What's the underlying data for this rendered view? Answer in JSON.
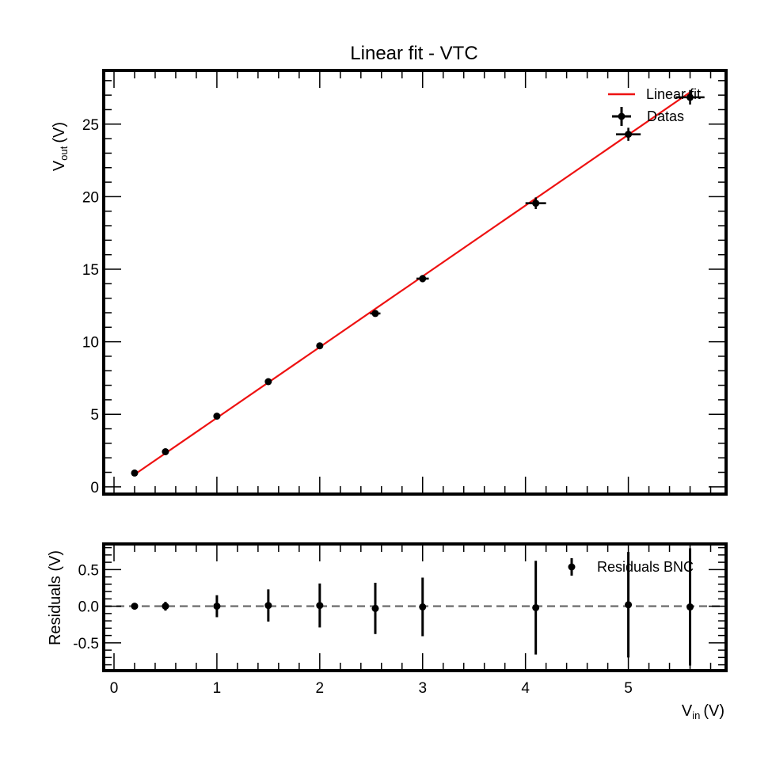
{
  "chart_data": [
    {
      "type": "scatter",
      "title": "Linear fit - VTC",
      "ylabel_main": "V",
      "ylabel_sub": "out",
      "ylabel_unit": "(V)",
      "xlim": [
        -0.1,
        5.95
      ],
      "ylim": [
        -0.5,
        28.7
      ],
      "yticks": [
        0,
        5,
        10,
        15,
        20,
        25
      ],
      "ytick_labels": [
        "0",
        "5",
        "10",
        "15",
        "20",
        "25"
      ],
      "legend": {
        "placement": "top-right",
        "entries": [
          "Linear fit",
          "Datas"
        ]
      },
      "fit": {
        "name": "Linear fit",
        "color": "#ee1111",
        "x": [
          0.2,
          5.6
        ],
        "y": [
          0.85,
          27.2
        ]
      },
      "series": [
        {
          "name": "Datas",
          "color": "#000000",
          "x": [
            0.2,
            0.5,
            1.0,
            1.5,
            2.0,
            2.54,
            3.0,
            4.1,
            5.0,
            5.6
          ],
          "y": [
            0.95,
            2.42,
            4.87,
            7.25,
            9.72,
            11.95,
            14.35,
            19.55,
            24.3,
            26.85
          ],
          "xerr": [
            0,
            0,
            0,
            0,
            0.03,
            0.05,
            0.06,
            0.1,
            0.12,
            0.14
          ],
          "yerr": [
            0.05,
            0.07,
            0.1,
            0.12,
            0.15,
            0.15,
            0.25,
            0.4,
            0.45,
            0.5
          ]
        }
      ]
    },
    {
      "type": "scatter",
      "title": "",
      "xlabel_main": "V",
      "xlabel_sub": "in",
      "xlabel_unit": "(V)",
      "ylabel": "Residuals (V)",
      "xlim": [
        -0.1,
        5.95
      ],
      "ylim": [
        -0.88,
        0.85
      ],
      "xticks": [
        0,
        1,
        2,
        3,
        4,
        5
      ],
      "xtick_labels": [
        "0",
        "1",
        "2",
        "3",
        "4",
        "5"
      ],
      "yticks": [
        0.5,
        0.0,
        -0.5
      ],
      "ytick_labels": [
        "0.5",
        "0.0",
        "-0.5"
      ],
      "zero_line": true,
      "legend": {
        "placement": "top-right",
        "entries": [
          "Residuals BNC"
        ]
      },
      "series": [
        {
          "name": "Residuals BNC",
          "color": "#000000",
          "x": [
            0.2,
            0.5,
            1.0,
            1.5,
            2.0,
            2.54,
            3.0,
            4.1,
            5.0,
            5.6
          ],
          "y": [
            0.0,
            0.0,
            0.0,
            0.01,
            0.01,
            -0.03,
            -0.01,
            -0.02,
            0.02,
            -0.01
          ],
          "yerr": [
            0.02,
            0.06,
            0.15,
            0.22,
            0.3,
            0.35,
            0.4,
            0.64,
            0.72,
            0.8
          ]
        }
      ]
    }
  ]
}
